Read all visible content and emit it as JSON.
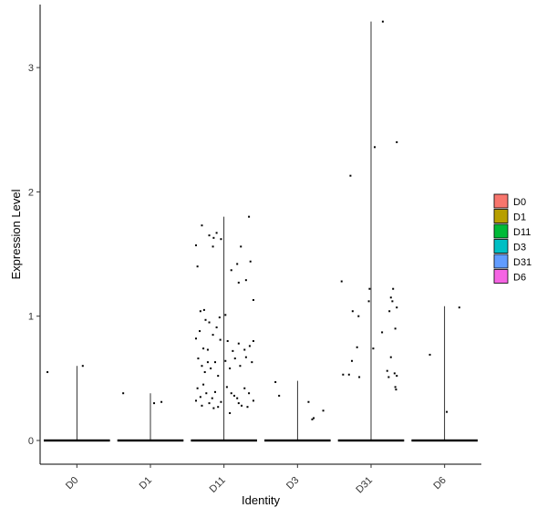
{
  "chart_data": {
    "type": "violin",
    "xlabel": "Identity",
    "ylabel": "Expression Level",
    "categories": [
      "D0",
      "D1",
      "D11",
      "D3",
      "D31",
      "D6"
    ],
    "ylim": [
      -0.2,
      3.5
    ],
    "yticks": [
      0,
      1,
      2,
      3
    ],
    "legend": {
      "placement": "right",
      "entries": [
        {
          "label": "D0",
          "color": "#F8766D"
        },
        {
          "label": "D1",
          "color": "#B79F00"
        },
        {
          "label": "D11",
          "color": "#00BA38"
        },
        {
          "label": "D3",
          "color": "#00BFC4"
        },
        {
          "label": "D31",
          "color": "#619CFF"
        },
        {
          "label": "D6",
          "color": "#F564E3"
        }
      ]
    },
    "series": [
      {
        "category": "D0",
        "max": 0.6,
        "points": [
          [
            -0.4,
            0.55
          ],
          [
            0.08,
            0.6
          ]
        ]
      },
      {
        "category": "D1",
        "max": 0.38,
        "points": [
          [
            -0.37,
            0.38
          ],
          [
            0.05,
            0.3
          ],
          [
            0.15,
            0.31
          ]
        ]
      },
      {
        "category": "D11",
        "max": 1.8,
        "points": [
          [
            -0.38,
            1.57
          ],
          [
            -0.3,
            1.73
          ],
          [
            -0.2,
            1.65
          ],
          [
            -0.14,
            1.63
          ],
          [
            -0.1,
            1.67
          ],
          [
            -0.04,
            1.62
          ],
          [
            0.34,
            1.8
          ],
          [
            -0.36,
            1.4
          ],
          [
            -0.15,
            1.56
          ],
          [
            0.1,
            1.37
          ],
          [
            0.18,
            1.42
          ],
          [
            0.2,
            1.27
          ],
          [
            0.23,
            1.56
          ],
          [
            0.3,
            1.29
          ],
          [
            0.36,
            1.44
          ],
          [
            0.4,
            1.13
          ],
          [
            -0.32,
            1.04
          ],
          [
            -0.27,
            1.05
          ],
          [
            -0.25,
            0.97
          ],
          [
            -0.2,
            0.95
          ],
          [
            -0.1,
            0.91
          ],
          [
            -0.06,
            0.99
          ],
          [
            0.02,
            1.01
          ],
          [
            -0.38,
            0.82
          ],
          [
            -0.33,
            0.88
          ],
          [
            -0.28,
            0.74
          ],
          [
            -0.22,
            0.73
          ],
          [
            -0.15,
            0.85
          ],
          [
            -0.05,
            0.81
          ],
          [
            0.05,
            0.8
          ],
          [
            0.12,
            0.72
          ],
          [
            0.2,
            0.78
          ],
          [
            0.28,
            0.73
          ],
          [
            0.35,
            0.76
          ],
          [
            0.4,
            0.8
          ],
          [
            -0.35,
            0.66
          ],
          [
            -0.3,
            0.6
          ],
          [
            -0.26,
            0.55
          ],
          [
            -0.22,
            0.63
          ],
          [
            -0.18,
            0.58
          ],
          [
            -0.12,
            0.63
          ],
          [
            -0.08,
            0.52
          ],
          [
            0.02,
            0.64
          ],
          [
            0.08,
            0.58
          ],
          [
            0.15,
            0.66
          ],
          [
            0.22,
            0.6
          ],
          [
            0.3,
            0.67
          ],
          [
            0.38,
            0.63
          ],
          [
            -0.36,
            0.42
          ],
          [
            -0.32,
            0.35
          ],
          [
            -0.28,
            0.45
          ],
          [
            -0.24,
            0.38
          ],
          [
            -0.2,
            0.3
          ],
          [
            -0.16,
            0.34
          ],
          [
            -0.12,
            0.39
          ],
          [
            -0.08,
            0.27
          ],
          [
            -0.04,
            0.31
          ],
          [
            0.04,
            0.43
          ],
          [
            0.1,
            0.38
          ],
          [
            0.14,
            0.36
          ],
          [
            0.18,
            0.34
          ],
          [
            0.24,
            0.28
          ],
          [
            0.28,
            0.42
          ],
          [
            0.34,
            0.38
          ],
          [
            0.4,
            0.32
          ],
          [
            -0.38,
            0.32
          ],
          [
            -0.3,
            0.28
          ],
          [
            -0.14,
            0.26
          ],
          [
            0.08,
            0.22
          ],
          [
            0.2,
            0.3
          ],
          [
            0.32,
            0.27
          ]
        ]
      },
      {
        "category": "D3",
        "max": 0.48,
        "points": [
          [
            -0.3,
            0.47
          ],
          [
            -0.25,
            0.36
          ],
          [
            0.15,
            0.31
          ],
          [
            0.22,
            0.18
          ],
          [
            0.2,
            0.17
          ],
          [
            0.35,
            0.24
          ]
        ]
      },
      {
        "category": "D31",
        "max": 3.37,
        "points": [
          [
            0.16,
            3.37
          ],
          [
            -0.28,
            2.13
          ],
          [
            0.05,
            2.36
          ],
          [
            0.35,
            2.4
          ],
          [
            -0.4,
            1.28
          ],
          [
            -0.02,
            1.22
          ],
          [
            -0.03,
            1.12
          ],
          [
            0.3,
            1.22
          ],
          [
            0.27,
            1.15
          ],
          [
            0.29,
            1.12
          ],
          [
            0.35,
            1.07
          ],
          [
            0.25,
            1.04
          ],
          [
            -0.25,
            1.04
          ],
          [
            -0.17,
            1.0
          ],
          [
            0.15,
            0.87
          ],
          [
            0.33,
            0.9
          ],
          [
            -0.19,
            0.75
          ],
          [
            0.03,
            0.74
          ],
          [
            -0.26,
            0.64
          ],
          [
            0.27,
            0.67
          ],
          [
            -0.38,
            0.53
          ],
          [
            -0.3,
            0.53
          ],
          [
            -0.16,
            0.51
          ],
          [
            0.22,
            0.56
          ],
          [
            0.24,
            0.51
          ],
          [
            0.32,
            0.54
          ],
          [
            0.35,
            0.52
          ],
          [
            0.33,
            0.43
          ],
          [
            0.34,
            0.41
          ]
        ]
      },
      {
        "category": "D6",
        "max": 1.08,
        "points": [
          [
            0.2,
            1.07
          ],
          [
            -0.2,
            0.69
          ],
          [
            0.03,
            0.23
          ]
        ]
      }
    ]
  }
}
